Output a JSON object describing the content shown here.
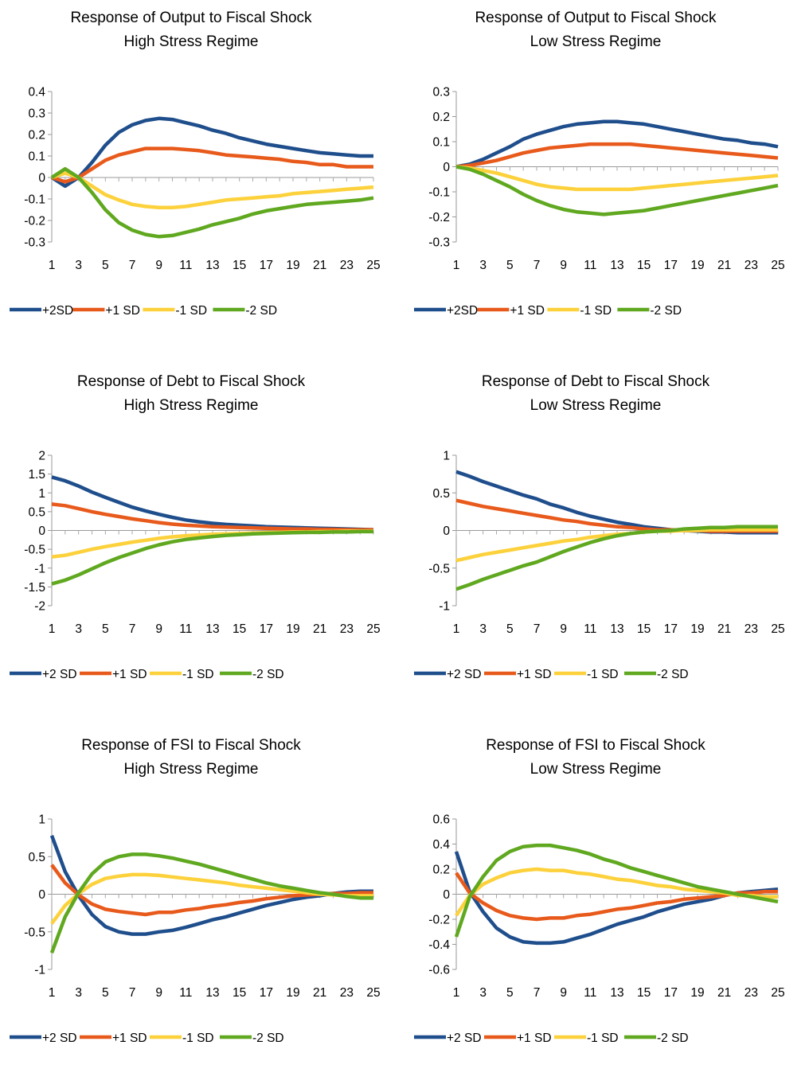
{
  "chart_data": [
    {
      "type": "line",
      "title": "Response of Output to Fiscal Shock",
      "subtitle": "High Stress Regime",
      "x": [
        1,
        2,
        3,
        4,
        5,
        6,
        7,
        8,
        9,
        10,
        11,
        12,
        13,
        14,
        15,
        16,
        17,
        18,
        19,
        20,
        21,
        22,
        23,
        24,
        25
      ],
      "xticks": [
        1,
        3,
        5,
        7,
        9,
        11,
        13,
        15,
        17,
        19,
        21,
        23,
        25
      ],
      "ylim": [
        -0.3,
        0.4
      ],
      "yticks": [
        -0.3,
        -0.2,
        -0.1,
        0,
        0.1,
        0.2,
        0.3,
        0.4
      ],
      "ytick_labels": [
        "-0.3",
        "-0.2",
        "-0.1",
        "0",
        "0.1",
        "0.2",
        "0.3",
        "0.4"
      ],
      "legend": "bottom",
      "series": [
        {
          "name": "+2SD",
          "color": "#1f4e8c",
          "values": [
            0,
            -0.04,
            0,
            0.07,
            0.15,
            0.21,
            0.245,
            0.265,
            0.275,
            0.27,
            0.255,
            0.24,
            0.22,
            0.205,
            0.185,
            0.17,
            0.155,
            0.145,
            0.135,
            0.125,
            0.115,
            0.11,
            0.105,
            0.1,
            0.1
          ]
        },
        {
          "name": "+1 SD",
          "color": "#e85a1b",
          "values": [
            0,
            -0.02,
            0,
            0.04,
            0.08,
            0.105,
            0.12,
            0.135,
            0.135,
            0.135,
            0.13,
            0.125,
            0.115,
            0.105,
            0.1,
            0.095,
            0.09,
            0.085,
            0.075,
            0.07,
            0.06,
            0.06,
            0.05,
            0.05,
            0.05
          ]
        },
        {
          "name": "-1 SD",
          "color": "#fcd13b",
          "values": [
            0,
            0.02,
            0,
            -0.04,
            -0.08,
            -0.105,
            -0.125,
            -0.135,
            -0.14,
            -0.14,
            -0.135,
            -0.125,
            -0.115,
            -0.105,
            -0.1,
            -0.095,
            -0.09,
            -0.085,
            -0.075,
            -0.07,
            -0.065,
            -0.06,
            -0.055,
            -0.05,
            -0.045
          ]
        },
        {
          "name": "-2 SD",
          "color": "#5fa81f",
          "values": [
            0,
            0.04,
            0,
            -0.07,
            -0.15,
            -0.21,
            -0.245,
            -0.265,
            -0.275,
            -0.27,
            -0.255,
            -0.24,
            -0.22,
            -0.205,
            -0.19,
            -0.17,
            -0.155,
            -0.145,
            -0.135,
            -0.125,
            -0.12,
            -0.115,
            -0.11,
            -0.105,
            -0.095
          ]
        }
      ]
    },
    {
      "type": "line",
      "title": "Response of Output to Fiscal Shock",
      "subtitle": "Low Stress Regime",
      "x": [
        1,
        2,
        3,
        4,
        5,
        6,
        7,
        8,
        9,
        10,
        11,
        12,
        13,
        14,
        15,
        16,
        17,
        18,
        19,
        20,
        21,
        22,
        23,
        24,
        25
      ],
      "xticks": [
        1,
        3,
        5,
        7,
        9,
        11,
        13,
        15,
        17,
        19,
        21,
        23,
        25
      ],
      "ylim": [
        -0.3,
        0.3
      ],
      "yticks": [
        -0.3,
        -0.2,
        -0.1,
        0,
        0.1,
        0.2,
        0.3
      ],
      "ytick_labels": [
        "-0.3",
        "-0.2",
        "-0.1",
        "0",
        "0.1",
        "0.2",
        "0.3"
      ],
      "legend": "bottom",
      "series": [
        {
          "name": "+2SD",
          "color": "#1f4e8c",
          "values": [
            0,
            0.01,
            0.03,
            0.055,
            0.08,
            0.11,
            0.13,
            0.145,
            0.16,
            0.17,
            0.175,
            0.18,
            0.18,
            0.175,
            0.17,
            0.16,
            0.15,
            0.14,
            0.13,
            0.12,
            0.11,
            0.105,
            0.095,
            0.09,
            0.08
          ]
        },
        {
          "name": "+1 SD",
          "color": "#e85a1b",
          "values": [
            0,
            0.005,
            0.015,
            0.025,
            0.04,
            0.055,
            0.065,
            0.075,
            0.08,
            0.085,
            0.09,
            0.09,
            0.09,
            0.09,
            0.085,
            0.08,
            0.075,
            0.07,
            0.065,
            0.06,
            0.055,
            0.05,
            0.045,
            0.04,
            0.035
          ]
        },
        {
          "name": "-1 SD",
          "color": "#fcd13b",
          "values": [
            0,
            -0.005,
            -0.015,
            -0.025,
            -0.04,
            -0.055,
            -0.07,
            -0.08,
            -0.085,
            -0.09,
            -0.09,
            -0.09,
            -0.09,
            -0.09,
            -0.085,
            -0.08,
            -0.075,
            -0.07,
            -0.065,
            -0.06,
            -0.055,
            -0.05,
            -0.045,
            -0.04,
            -0.035
          ]
        },
        {
          "name": "-2 SD",
          "color": "#5fa81f",
          "values": [
            0,
            -0.01,
            -0.03,
            -0.055,
            -0.08,
            -0.11,
            -0.135,
            -0.155,
            -0.17,
            -0.18,
            -0.185,
            -0.19,
            -0.185,
            -0.18,
            -0.175,
            -0.165,
            -0.155,
            -0.145,
            -0.135,
            -0.125,
            -0.115,
            -0.105,
            -0.095,
            -0.085,
            -0.075
          ]
        }
      ]
    },
    {
      "type": "line",
      "title": "Response of Debt to Fiscal Shock",
      "subtitle": "High Stress Regime",
      "x": [
        1,
        2,
        3,
        4,
        5,
        6,
        7,
        8,
        9,
        10,
        11,
        12,
        13,
        14,
        15,
        16,
        17,
        18,
        19,
        20,
        21,
        22,
        23,
        24,
        25
      ],
      "xticks": [
        1,
        3,
        5,
        7,
        9,
        11,
        13,
        15,
        17,
        19,
        21,
        23,
        25
      ],
      "ylim": [
        -2,
        2
      ],
      "yticks": [
        -2,
        -1.5,
        -1,
        -0.5,
        0,
        0.5,
        1,
        1.5,
        2
      ],
      "ytick_labels": [
        "-2",
        "-1.5",
        "-1",
        "-0.5",
        "0",
        "0.5",
        "1",
        "1.5",
        "2"
      ],
      "legend": "bottom",
      "series": [
        {
          "name": "+2 SD",
          "color": "#1f4e8c",
          "values": [
            1.42,
            1.32,
            1.18,
            1.02,
            0.88,
            0.75,
            0.62,
            0.52,
            0.43,
            0.35,
            0.28,
            0.23,
            0.19,
            0.16,
            0.14,
            0.12,
            0.1,
            0.09,
            0.08,
            0.07,
            0.06,
            0.05,
            0.04,
            0.03,
            0.02
          ]
        },
        {
          "name": "+1 SD",
          "color": "#e85a1b",
          "values": [
            0.7,
            0.66,
            0.58,
            0.5,
            0.43,
            0.37,
            0.31,
            0.26,
            0.21,
            0.17,
            0.14,
            0.12,
            0.1,
            0.09,
            0.08,
            0.07,
            0.06,
            0.05,
            0.04,
            0.04,
            0.03,
            0.03,
            0.02,
            0.02,
            0.02
          ]
        },
        {
          "name": "-1 SD",
          "color": "#fcd13b",
          "values": [
            -0.7,
            -0.66,
            -0.58,
            -0.5,
            -0.43,
            -0.37,
            -0.31,
            -0.26,
            -0.21,
            -0.17,
            -0.14,
            -0.12,
            -0.1,
            -0.09,
            -0.08,
            -0.07,
            -0.06,
            -0.05,
            -0.04,
            -0.04,
            -0.03,
            -0.03,
            -0.02,
            -0.02,
            -0.02
          ]
        },
        {
          "name": "-2 SD",
          "color": "#5fa81f",
          "values": [
            -1.42,
            -1.32,
            -1.18,
            -1.02,
            -0.86,
            -0.72,
            -0.6,
            -0.48,
            -0.38,
            -0.3,
            -0.24,
            -0.2,
            -0.16,
            -0.13,
            -0.11,
            -0.09,
            -0.08,
            -0.07,
            -0.06,
            -0.05,
            -0.05,
            -0.04,
            -0.04,
            -0.03,
            -0.03
          ]
        }
      ]
    },
    {
      "type": "line",
      "title": "Response of Debt to Fiscal Shock",
      "subtitle": "Low Stress Regime",
      "x": [
        1,
        2,
        3,
        4,
        5,
        6,
        7,
        8,
        9,
        10,
        11,
        12,
        13,
        14,
        15,
        16,
        17,
        18,
        19,
        20,
        21,
        22,
        23,
        24,
        25
      ],
      "xticks": [
        1,
        3,
        5,
        7,
        9,
        11,
        13,
        15,
        17,
        19,
        21,
        23,
        25
      ],
      "ylim": [
        -1,
        1
      ],
      "yticks": [
        -1,
        -0.5,
        0,
        0.5,
        1
      ],
      "ytick_labels": [
        "-1",
        "-0.5",
        "0",
        "0.5",
        "1"
      ],
      "legend": "bottom",
      "series": [
        {
          "name": "+2 SD",
          "color": "#1f4e8c",
          "values": [
            0.78,
            0.72,
            0.65,
            0.59,
            0.53,
            0.47,
            0.42,
            0.35,
            0.3,
            0.24,
            0.19,
            0.15,
            0.11,
            0.08,
            0.05,
            0.03,
            0.01,
            0,
            -0.01,
            -0.02,
            -0.02,
            -0.03,
            -0.03,
            -0.03,
            -0.03
          ]
        },
        {
          "name": "+1 SD",
          "color": "#e85a1b",
          "values": [
            0.4,
            0.36,
            0.32,
            0.29,
            0.26,
            0.23,
            0.2,
            0.17,
            0.14,
            0.12,
            0.09,
            0.07,
            0.05,
            0.04,
            0.02,
            0.01,
            0.01,
            0,
            0,
            -0.01,
            -0.01,
            -0.01,
            -0.01,
            -0.01,
            -0.01
          ]
        },
        {
          "name": "-1 SD",
          "color": "#fcd13b",
          "values": [
            -0.4,
            -0.36,
            -0.32,
            -0.29,
            -0.26,
            -0.23,
            -0.2,
            -0.17,
            -0.14,
            -0.12,
            -0.09,
            -0.07,
            -0.05,
            -0.04,
            -0.02,
            -0.01,
            -0.01,
            0,
            0,
            0.01,
            0.01,
            0.01,
            0.01,
            0.01,
            0.01
          ]
        },
        {
          "name": "-2 SD",
          "color": "#5fa81f",
          "values": [
            -0.78,
            -0.72,
            -0.65,
            -0.59,
            -0.53,
            -0.47,
            -0.42,
            -0.35,
            -0.28,
            -0.22,
            -0.16,
            -0.11,
            -0.07,
            -0.04,
            -0.02,
            -0.01,
            0,
            0.02,
            0.03,
            0.04,
            0.04,
            0.05,
            0.05,
            0.05,
            0.05
          ]
        }
      ]
    },
    {
      "type": "line",
      "title": "Response of FSI to Fiscal Shock",
      "subtitle": "High Stress Regime",
      "x": [
        1,
        2,
        3,
        4,
        5,
        6,
        7,
        8,
        9,
        10,
        11,
        12,
        13,
        14,
        15,
        16,
        17,
        18,
        19,
        20,
        21,
        22,
        23,
        24,
        25
      ],
      "xticks": [
        1,
        3,
        5,
        7,
        9,
        11,
        13,
        15,
        17,
        19,
        21,
        23,
        25
      ],
      "ylim": [
        -1,
        1
      ],
      "yticks": [
        -1,
        -0.5,
        0,
        0.5,
        1
      ],
      "ytick_labels": [
        "-1",
        "-0.5",
        "0",
        "0.5",
        "1"
      ],
      "legend": "bottom",
      "series": [
        {
          "name": "+2 SD",
          "color": "#1f4e8c",
          "values": [
            0.78,
            0.3,
            -0.02,
            -0.27,
            -0.43,
            -0.5,
            -0.53,
            -0.53,
            -0.5,
            -0.48,
            -0.44,
            -0.39,
            -0.34,
            -0.3,
            -0.25,
            -0.2,
            -0.15,
            -0.11,
            -0.07,
            -0.04,
            -0.02,
            0.01,
            0.03,
            0.04,
            0.04
          ]
        },
        {
          "name": "+1 SD",
          "color": "#e85a1b",
          "values": [
            0.39,
            0.15,
            -0.01,
            -0.13,
            -0.2,
            -0.23,
            -0.25,
            -0.27,
            -0.24,
            -0.24,
            -0.21,
            -0.19,
            -0.16,
            -0.14,
            -0.11,
            -0.09,
            -0.06,
            -0.04,
            -0.02,
            -0.01,
            0,
            0.01,
            0.01,
            0.02,
            0.02
          ]
        },
        {
          "name": "-1 SD",
          "color": "#fcd13b",
          "values": [
            -0.39,
            -0.15,
            0.01,
            0.13,
            0.21,
            0.24,
            0.26,
            0.26,
            0.25,
            0.23,
            0.21,
            0.19,
            0.17,
            0.15,
            0.12,
            0.1,
            0.08,
            0.06,
            0.04,
            0.02,
            0,
            -0.01,
            -0.02,
            -0.02,
            -0.02
          ]
        },
        {
          "name": "-2 SD",
          "color": "#5fa81f",
          "values": [
            -0.78,
            -0.3,
            0.02,
            0.27,
            0.43,
            0.5,
            0.53,
            0.53,
            0.51,
            0.48,
            0.44,
            0.4,
            0.35,
            0.3,
            0.25,
            0.2,
            0.15,
            0.11,
            0.08,
            0.05,
            0.02,
            0,
            -0.03,
            -0.05,
            -0.05
          ]
        }
      ]
    },
    {
      "type": "line",
      "title": "Response of FSI to Fiscal Shock",
      "subtitle": "Low Stress Regime",
      "x": [
        1,
        2,
        3,
        4,
        5,
        6,
        7,
        8,
        9,
        10,
        11,
        12,
        13,
        14,
        15,
        16,
        17,
        18,
        19,
        20,
        21,
        22,
        23,
        24,
        25
      ],
      "xticks": [
        1,
        3,
        5,
        7,
        9,
        11,
        13,
        15,
        17,
        19,
        21,
        23,
        25
      ],
      "ylim": [
        -0.6,
        0.6
      ],
      "yticks": [
        -0.6,
        -0.4,
        -0.2,
        0,
        0.2,
        0.4,
        0.6
      ],
      "ytick_labels": [
        "-0.6",
        "-0.4",
        "-0.2",
        "0",
        "0.2",
        "0.4",
        "0.6"
      ],
      "legend": "bottom",
      "series": [
        {
          "name": "+2 SD",
          "color": "#1f4e8c",
          "values": [
            0.34,
            0.02,
            -0.14,
            -0.27,
            -0.34,
            -0.38,
            -0.39,
            -0.39,
            -0.38,
            -0.35,
            -0.32,
            -0.28,
            -0.24,
            -0.21,
            -0.18,
            -0.14,
            -0.11,
            -0.08,
            -0.06,
            -0.04,
            -0.01,
            0.01,
            0.02,
            0.03,
            0.04
          ]
        },
        {
          "name": "+1 SD",
          "color": "#e85a1b",
          "values": [
            0.17,
            0.01,
            -0.07,
            -0.13,
            -0.17,
            -0.19,
            -0.2,
            -0.19,
            -0.19,
            -0.17,
            -0.16,
            -0.14,
            -0.12,
            -0.11,
            -0.09,
            -0.07,
            -0.06,
            -0.04,
            -0.03,
            -0.02,
            -0.01,
            0.01,
            0.01,
            0.02,
            0.02
          ]
        },
        {
          "name": "-1 SD",
          "color": "#fcd13b",
          "values": [
            -0.17,
            -0.01,
            0.08,
            0.13,
            0.17,
            0.19,
            0.2,
            0.19,
            0.19,
            0.17,
            0.16,
            0.14,
            0.12,
            0.11,
            0.09,
            0.07,
            0.06,
            0.04,
            0.03,
            0.02,
            0.01,
            -0.01,
            -0.01,
            -0.02,
            -0.02
          ]
        },
        {
          "name": "-2 SD",
          "color": "#5fa81f",
          "values": [
            -0.34,
            -0.02,
            0.14,
            0.27,
            0.34,
            0.38,
            0.39,
            0.39,
            0.37,
            0.35,
            0.32,
            0.28,
            0.25,
            0.21,
            0.18,
            0.15,
            0.12,
            0.09,
            0.06,
            0.04,
            0.02,
            0,
            -0.02,
            -0.04,
            -0.06
          ]
        }
      ]
    }
  ]
}
